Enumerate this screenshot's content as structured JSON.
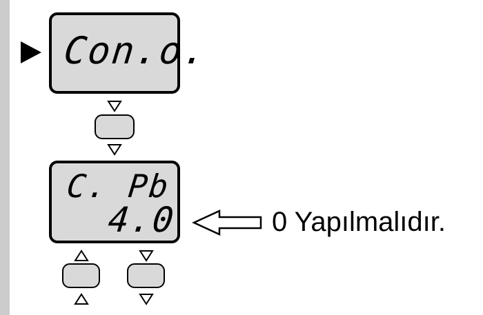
{
  "display_top": {
    "text": "Con.o."
  },
  "display_bottom": {
    "line1": "C.  Pb",
    "line2": "4.0"
  },
  "note": {
    "text": "0 Yapılmalıdır."
  }
}
